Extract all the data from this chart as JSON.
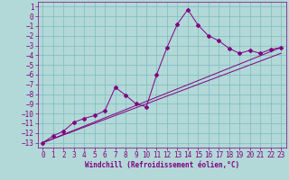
{
  "xlabel": "Windchill (Refroidissement éolien,°C)",
  "background_color": "#b2d8d8",
  "grid_color": "#7bbcbc",
  "line_color": "#800080",
  "xlim": [
    -0.5,
    23.5
  ],
  "ylim": [
    -13.5,
    1.5
  ],
  "xticks": [
    0,
    1,
    2,
    3,
    4,
    5,
    6,
    7,
    8,
    9,
    10,
    11,
    12,
    13,
    14,
    15,
    16,
    17,
    18,
    19,
    20,
    21,
    22,
    23
  ],
  "yticks": [
    1,
    0,
    -1,
    -2,
    -3,
    -4,
    -5,
    -6,
    -7,
    -8,
    -9,
    -10,
    -11,
    -12,
    -13
  ],
  "series1_x": [
    0,
    1,
    2,
    3,
    4,
    5,
    6,
    7,
    8,
    9,
    10,
    11,
    12,
    13,
    14,
    15,
    16,
    17,
    18,
    19,
    20,
    21,
    22,
    23
  ],
  "series1_y": [
    -13,
    -12.3,
    -11.8,
    -10.9,
    -10.5,
    -10.2,
    -9.7,
    -7.3,
    -8.1,
    -9.0,
    -9.3,
    -6.0,
    -3.2,
    -0.8,
    0.7,
    -0.9,
    -2.0,
    -2.5,
    -3.3,
    -3.8,
    -3.5,
    -3.8,
    -3.4,
    -3.2
  ],
  "series2_x": [
    0,
    23
  ],
  "series2_y": [
    -13,
    -3.2
  ],
  "series3_x": [
    0,
    23
  ],
  "series3_y": [
    -13,
    -3.8
  ],
  "marker": "D",
  "marker_size": 2.0,
  "font_size": 5.0,
  "tick_font_size": 5.5
}
